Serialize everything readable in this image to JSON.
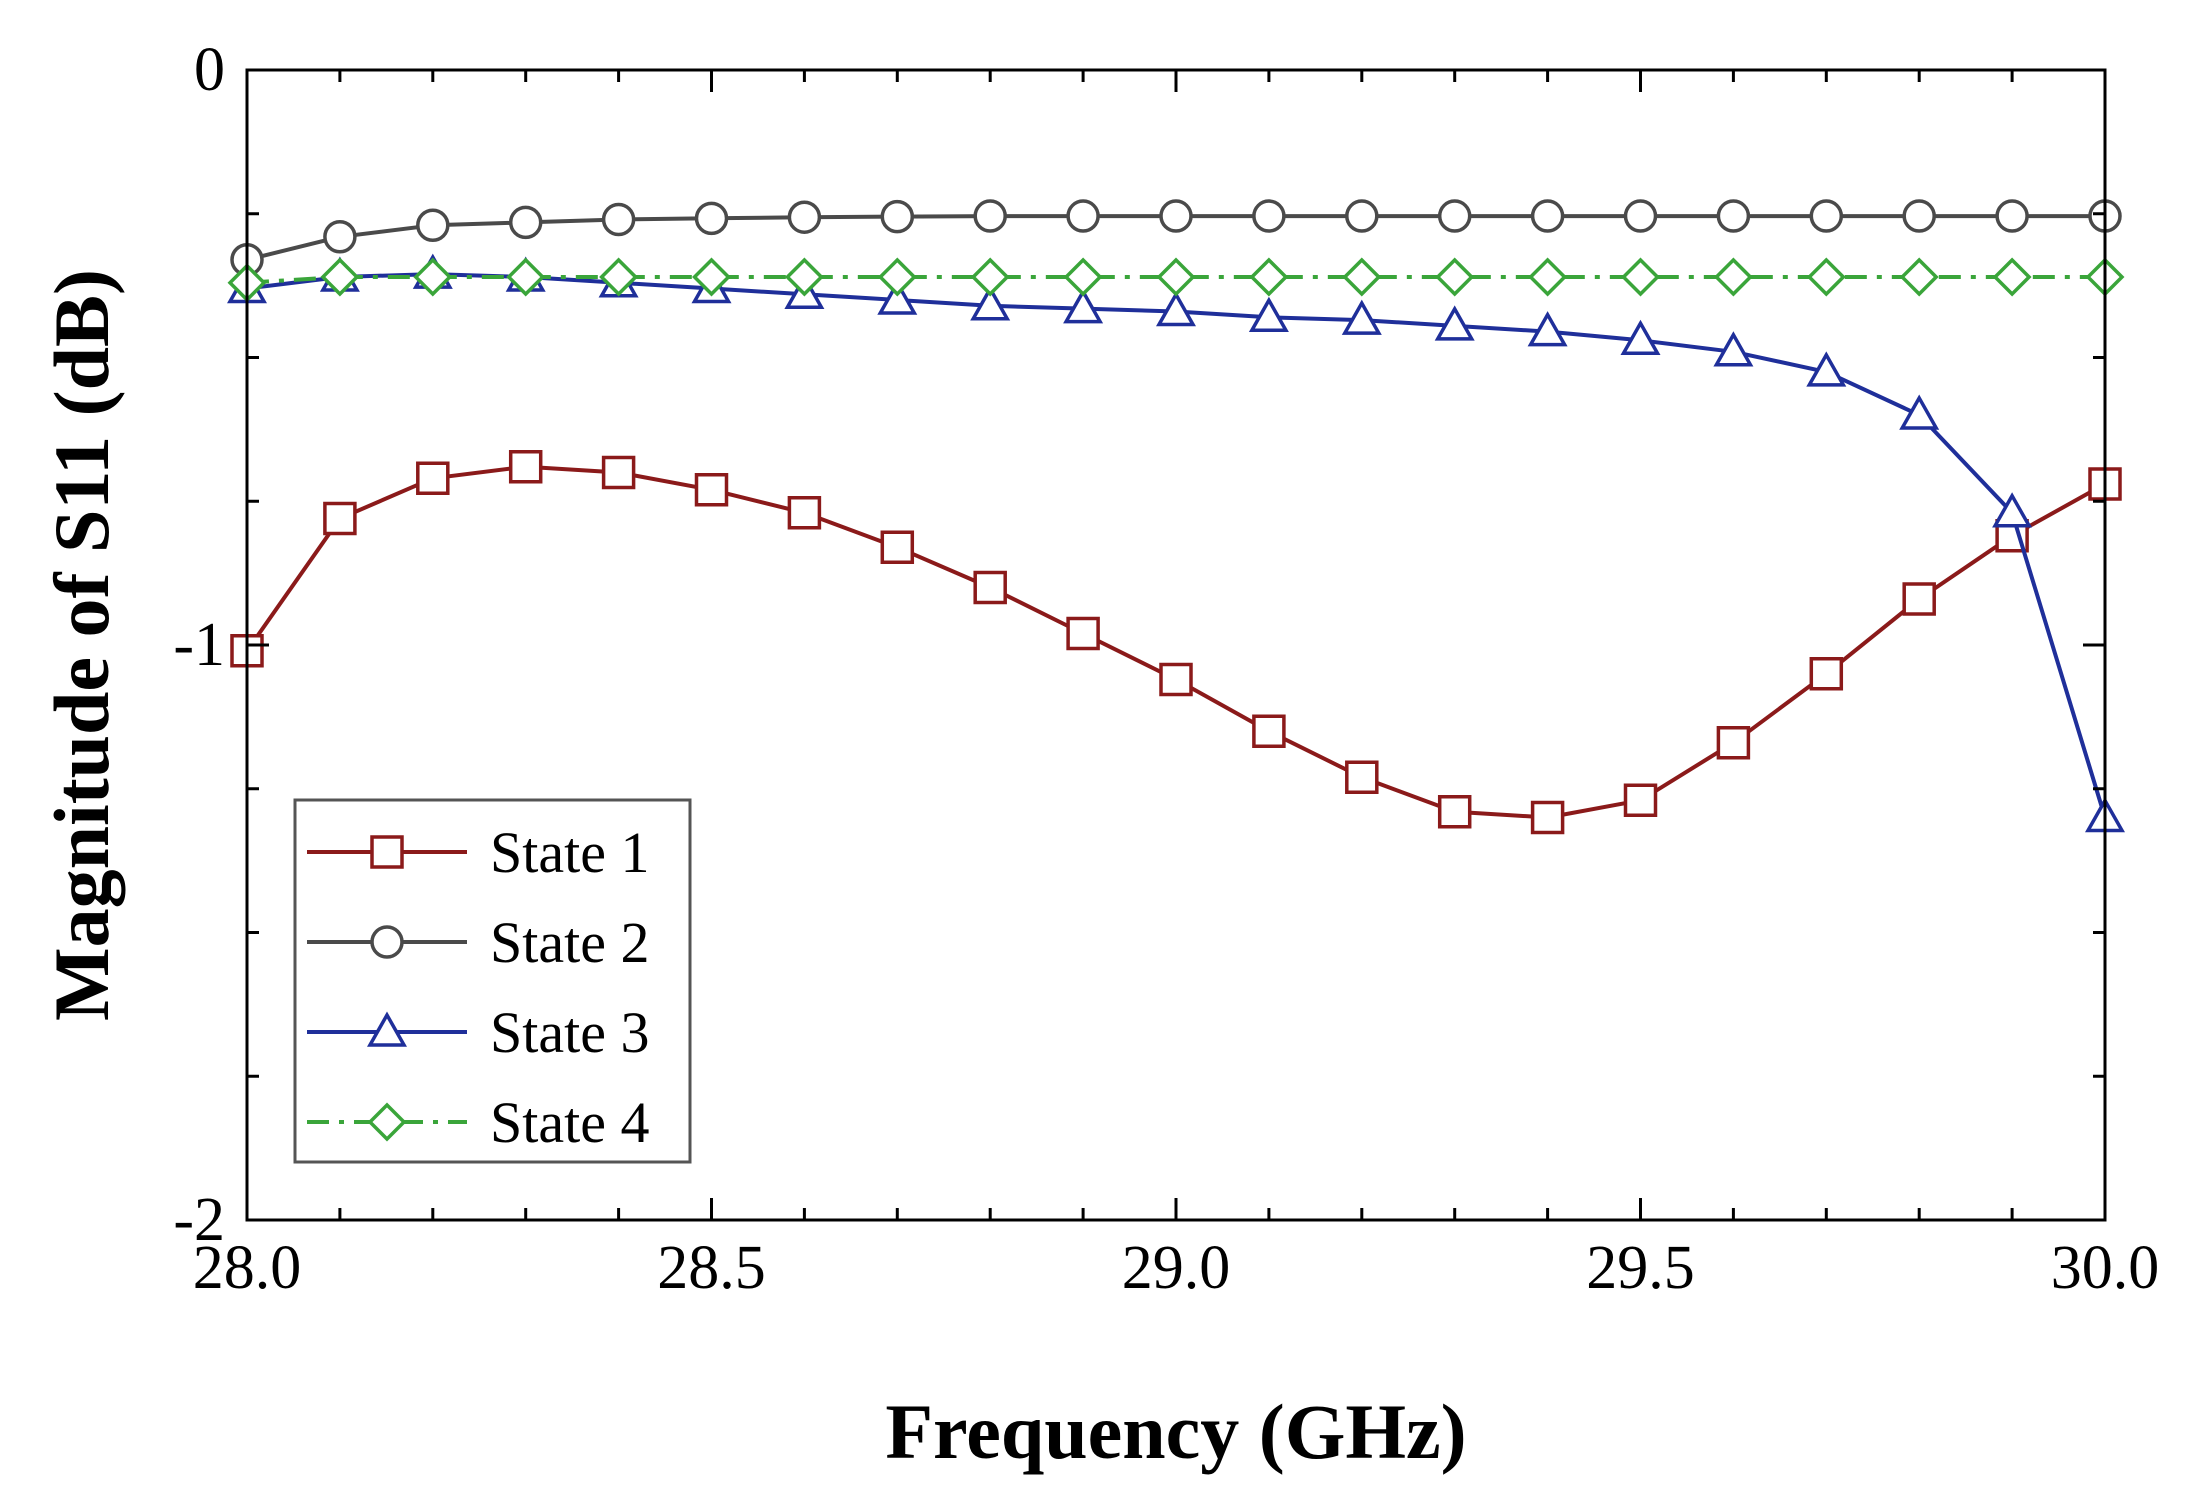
{
  "chart_data": {
    "type": "line",
    "xlabel": "Frequency (GHz)",
    "ylabel": "Magnitude of S11 (dB)",
    "xlim": [
      28.0,
      30.0
    ],
    "ylim": [
      -2,
      0
    ],
    "xticks": [
      "28.0",
      "28.5",
      "29.0",
      "29.5",
      "30.0"
    ],
    "xtick_values": [
      28.0,
      28.5,
      29.0,
      29.5,
      30.0
    ],
    "yticks": [
      "0",
      "-1",
      "-2"
    ],
    "ytick_values": [
      0,
      -1,
      -2
    ],
    "grid": false,
    "legend_position": "bottom-left",
    "x": [
      28.0,
      28.1,
      28.2,
      28.3,
      28.4,
      28.5,
      28.6,
      28.7,
      28.8,
      28.9,
      29.0,
      29.1,
      29.2,
      29.3,
      29.4,
      29.5,
      29.6,
      29.7,
      29.8,
      29.9,
      30.0
    ],
    "series": [
      {
        "name": "State 1",
        "color": "#8b1a1a",
        "marker": "square",
        "dash": "solid",
        "values": [
          -1.01,
          -0.78,
          -0.71,
          -0.69,
          -0.7,
          -0.73,
          -0.77,
          -0.83,
          -0.9,
          -0.98,
          -1.06,
          -1.15,
          -1.23,
          -1.29,
          -1.3,
          -1.27,
          -1.17,
          -1.05,
          -0.92,
          -0.81,
          -0.72
        ]
      },
      {
        "name": "State 2",
        "color": "#4a4a4a",
        "marker": "circle",
        "dash": "solid",
        "values": [
          -0.33,
          -0.29,
          -0.27,
          -0.265,
          -0.26,
          -0.258,
          -0.256,
          -0.255,
          -0.254,
          -0.254,
          -0.254,
          -0.254,
          -0.254,
          -0.254,
          -0.254,
          -0.254,
          -0.254,
          -0.254,
          -0.254,
          -0.254,
          -0.254
        ]
      },
      {
        "name": "State 3",
        "color": "#1f2f9a",
        "marker": "triangle",
        "dash": "solid",
        "values": [
          -0.38,
          -0.36,
          -0.355,
          -0.36,
          -0.37,
          -0.38,
          -0.39,
          -0.4,
          -0.41,
          -0.415,
          -0.42,
          -0.43,
          -0.435,
          -0.445,
          -0.455,
          -0.47,
          -0.49,
          -0.525,
          -0.6,
          -0.77,
          -1.3
        ]
      },
      {
        "name": "State 4",
        "color": "#3aa53a",
        "marker": "diamond",
        "dash": "dashdot",
        "values": [
          -0.37,
          -0.36,
          -0.36,
          -0.36,
          -0.36,
          -0.36,
          -0.36,
          -0.36,
          -0.36,
          -0.36,
          -0.36,
          -0.36,
          -0.36,
          -0.36,
          -0.36,
          -0.36,
          -0.36,
          -0.36,
          -0.36,
          -0.36,
          -0.36
        ]
      }
    ]
  }
}
